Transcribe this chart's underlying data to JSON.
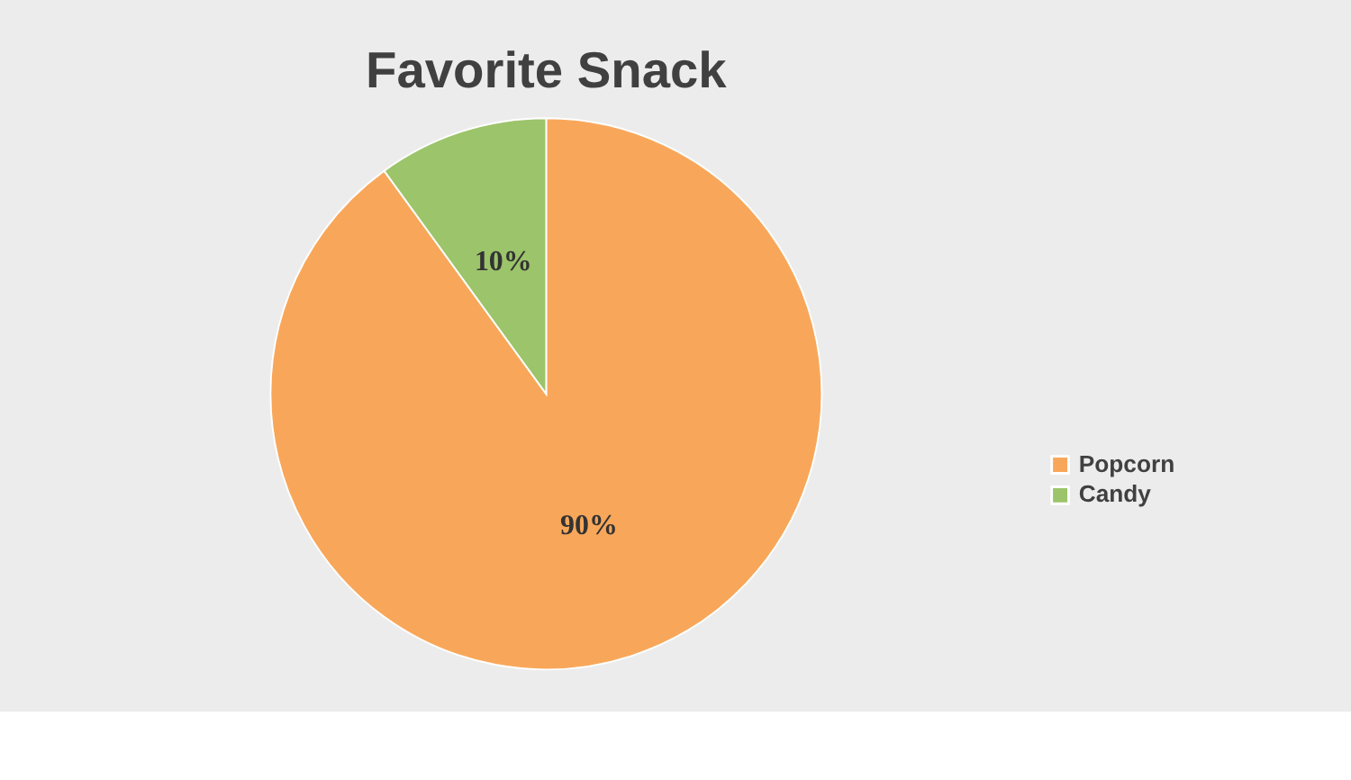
{
  "chart_data": {
    "type": "pie",
    "title": "Favorite Snack",
    "categories": [
      "Popcorn",
      "Candy"
    ],
    "values": [
      90,
      10
    ],
    "colors": [
      "#f8a75a",
      "#9cc46a"
    ],
    "value_labels": [
      "90%",
      "10%"
    ],
    "legend": "right"
  }
}
